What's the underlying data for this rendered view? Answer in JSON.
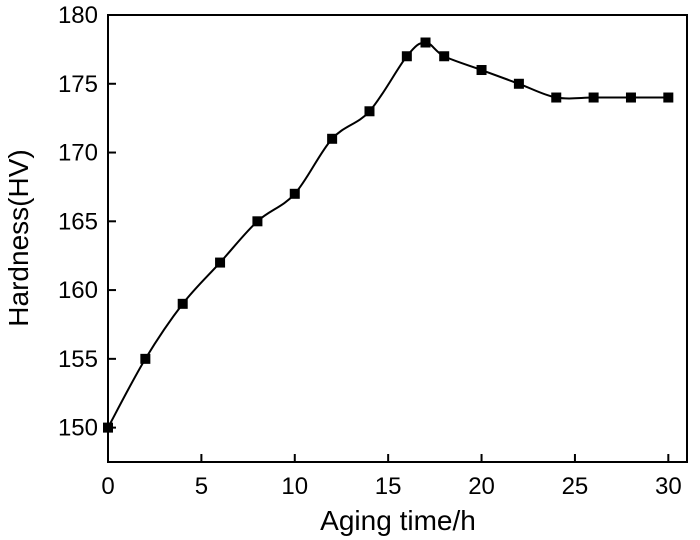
{
  "chart_data": {
    "type": "line",
    "title": "",
    "xlabel": "Aging time/h",
    "ylabel": "Hardness(HV)",
    "xlim": [
      0,
      31
    ],
    "ylim": [
      147.5,
      180
    ],
    "x_ticks": [
      0,
      5,
      10,
      15,
      20,
      25,
      30
    ],
    "y_ticks": [
      150,
      155,
      160,
      165,
      170,
      175,
      180
    ],
    "grid": false,
    "legend": "none",
    "line_style": "smooth",
    "marker": "square",
    "color": "#000000",
    "series": [
      {
        "x": [
          0,
          2,
          4,
          6,
          8,
          10,
          12,
          14,
          16,
          17,
          18,
          20,
          22,
          24,
          26,
          28,
          30
        ],
        "y": [
          150,
          155,
          159,
          162,
          165,
          167,
          171,
          173,
          177,
          178,
          177,
          176,
          175,
          174,
          174,
          174,
          174
        ]
      }
    ]
  }
}
